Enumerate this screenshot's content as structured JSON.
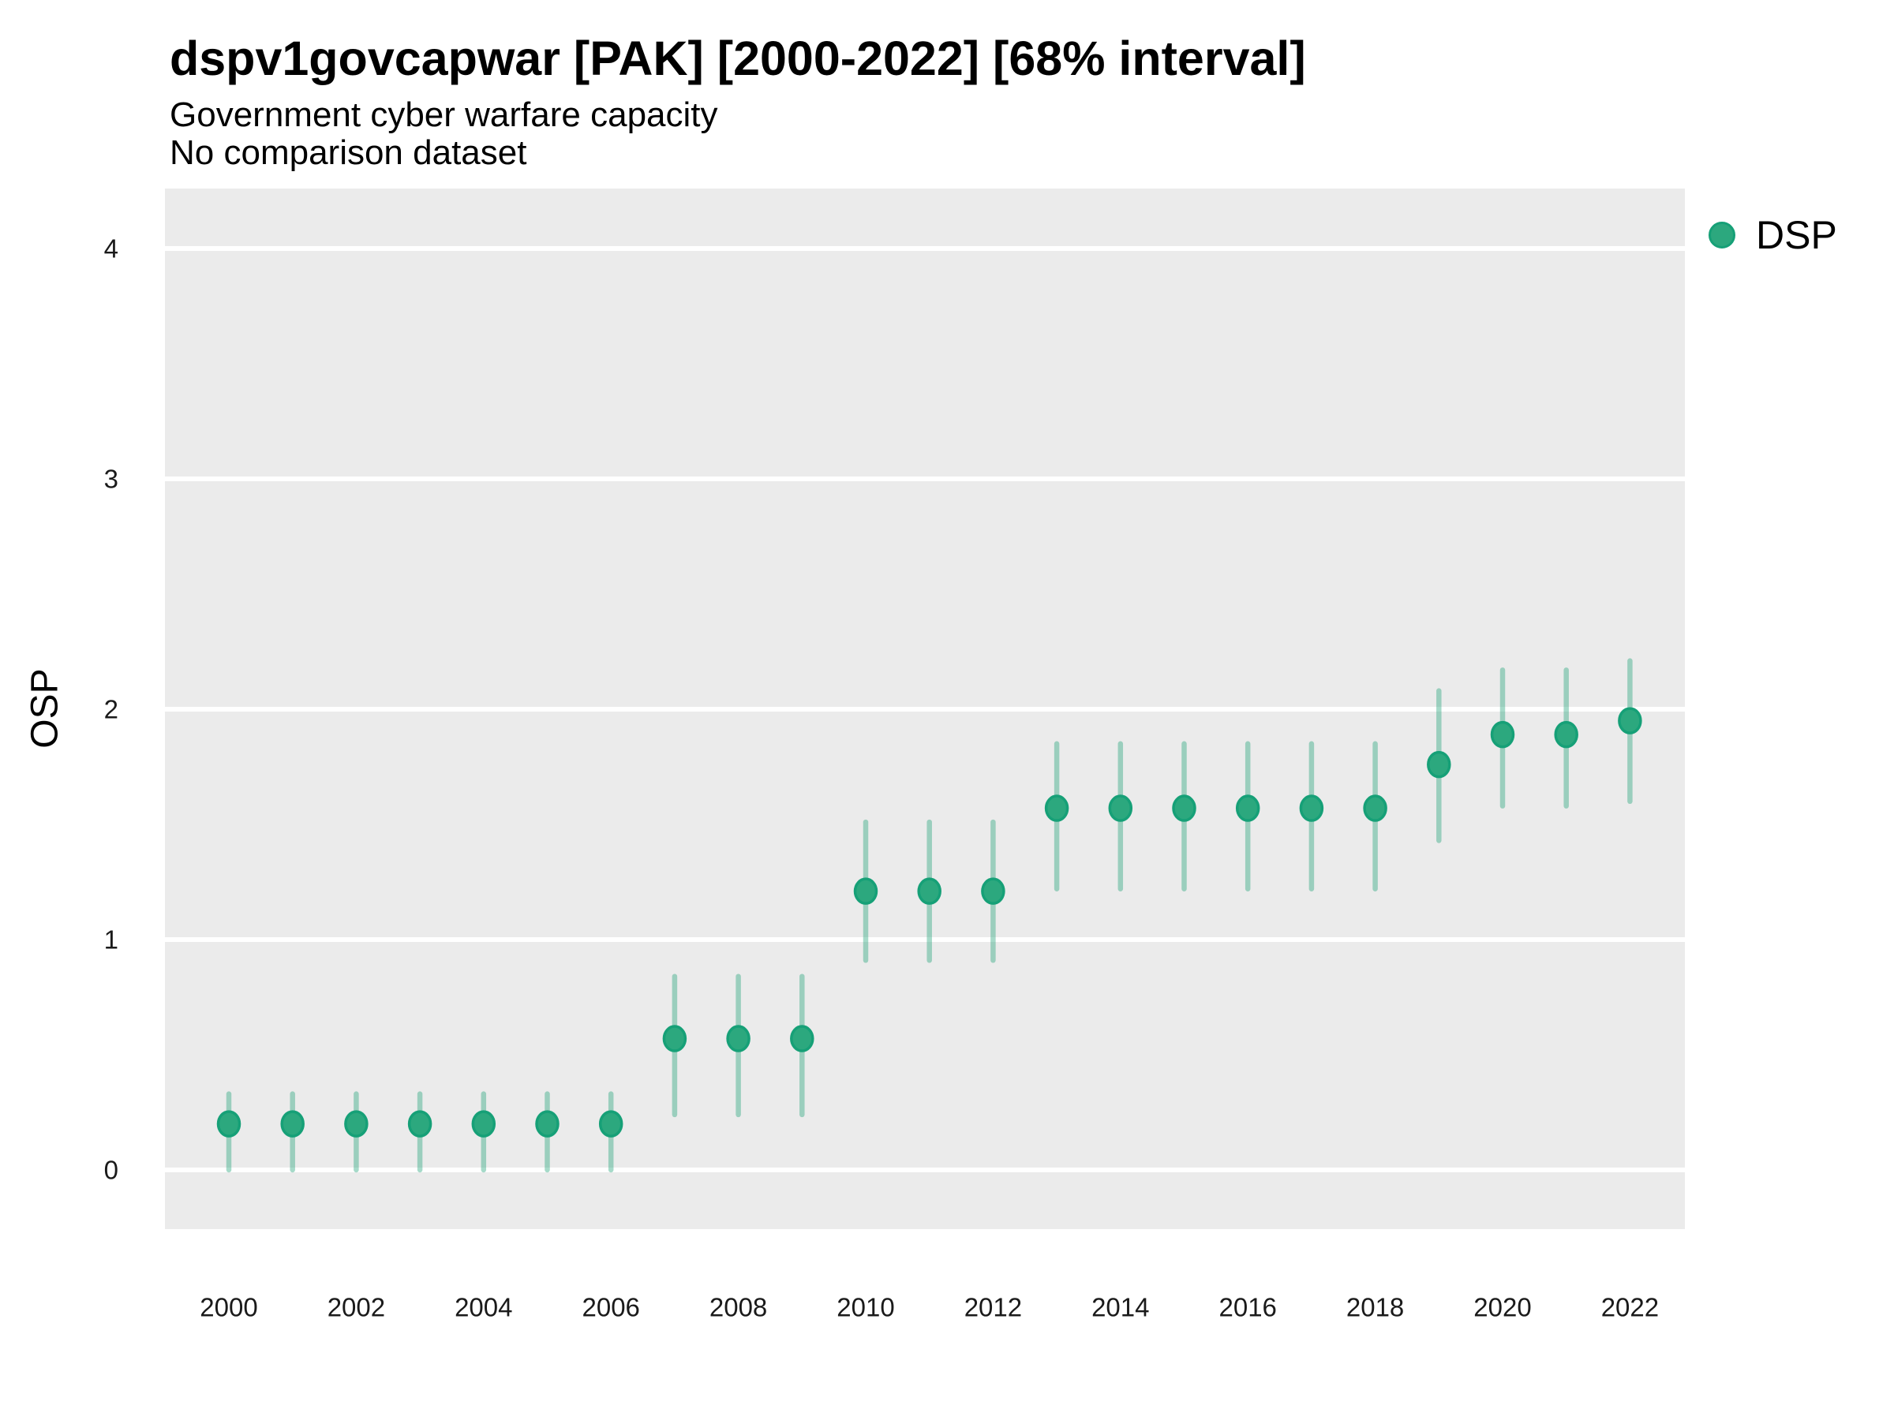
{
  "chart_data": {
    "type": "scatter",
    "variant": "pointrange",
    "interval_level": "68%",
    "title": "dspv1govcapwar [PAK] [2000-2022] [68% interval]",
    "subtitle": "Government cyber warfare capacity",
    "subtitle2": "No comparison dataset",
    "xlabel": "",
    "ylabel": "OSP",
    "legend": {
      "position": "right",
      "label": "DSP"
    },
    "x": [
      2000,
      2001,
      2002,
      2003,
      2004,
      2005,
      2006,
      2007,
      2008,
      2009,
      2010,
      2011,
      2012,
      2013,
      2014,
      2015,
      2016,
      2017,
      2018,
      2019,
      2020,
      2021,
      2022
    ],
    "series": [
      {
        "name": "DSP",
        "values": [
          0.2,
          0.2,
          0.2,
          0.2,
          0.2,
          0.2,
          0.2,
          0.57,
          0.57,
          0.57,
          1.21,
          1.21,
          1.21,
          1.57,
          1.57,
          1.57,
          1.57,
          1.57,
          1.57,
          1.76,
          1.89,
          1.89,
          1.95
        ],
        "lower": [
          0.0,
          0.0,
          0.0,
          0.0,
          0.0,
          0.0,
          0.0,
          0.24,
          0.24,
          0.24,
          0.91,
          0.91,
          0.91,
          1.22,
          1.22,
          1.22,
          1.22,
          1.22,
          1.22,
          1.43,
          1.58,
          1.58,
          1.6
        ],
        "upper": [
          0.33,
          0.33,
          0.33,
          0.33,
          0.33,
          0.33,
          0.33,
          0.84,
          0.84,
          0.84,
          1.51,
          1.51,
          1.51,
          1.85,
          1.85,
          1.85,
          1.85,
          1.85,
          1.85,
          2.08,
          2.17,
          2.17,
          2.21
        ]
      }
    ],
    "xticks": [
      2000,
      2002,
      2004,
      2006,
      2008,
      2010,
      2012,
      2014,
      2016,
      2018,
      2020,
      2022
    ],
    "yticks": [
      0,
      1,
      2,
      3,
      4
    ],
    "ylim": [
      -0.3,
      4.25
    ],
    "grid": "horizontal-major-only",
    "colors": {
      "point_fill": "#2CA87E",
      "point_stroke": "#16A077",
      "interval_bar": "rgba(44,168,126,0.42)",
      "panel_bg": "#EBEBEB",
      "gridline": "#FFFFFF",
      "title_text": "#000000",
      "tick_text": "#1A1A1A"
    }
  }
}
